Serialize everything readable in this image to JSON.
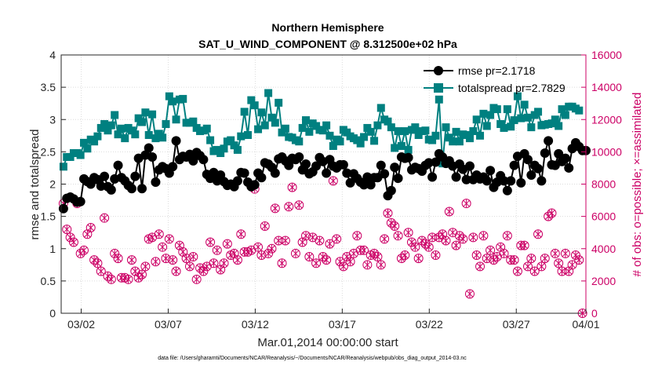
{
  "chart_data": {
    "type": "line",
    "title": "Northern Hemisphere",
    "subtitle": "SAT_U_WIND_COMPONENT @ 8.312500e+02 hPa",
    "xlabel": "Mar.01,2014 00:00:00 start",
    "ylabel_left": "rmse and totalspread",
    "ylabel_right": "# of obs: o=possible; ×=assimilated",
    "footnote": "data file: /Users/gharamti/Documents/NCAR/Reanalysis/~/Documents/NCAR/Reanalysis/webpub/obs_diag_output_2014-03.nc",
    "xlim": [
      0.85,
      31.0
    ],
    "ylim_left": [
      0,
      4
    ],
    "ylim_right": [
      0,
      16000
    ],
    "x_ticks": [
      {
        "value": 2,
        "label": "03/02"
      },
      {
        "value": 7,
        "label": "03/07"
      },
      {
        "value": 12,
        "label": "03/12"
      },
      {
        "value": 17,
        "label": "03/17"
      },
      {
        "value": 22,
        "label": "03/22"
      },
      {
        "value": 27,
        "label": "03/27"
      },
      {
        "value": 31,
        "label": "04/01"
      }
    ],
    "y_ticks_left": [
      "0",
      "0.5",
      "1",
      "1.5",
      "2",
      "2.5",
      "3",
      "3.5",
      "4"
    ],
    "y_ticks_right": [
      "0",
      "2000",
      "4000",
      "6000",
      "8000",
      "10000",
      "12000",
      "14000",
      "16000"
    ],
    "grid": true,
    "legend_position": "top-right",
    "colors": {
      "rmse": "#000000",
      "totalspread": "#008080",
      "obs": "#cc0066",
      "axis": "#262626",
      "grid": "#dcdcdc"
    },
    "series": [
      {
        "name": "rmse",
        "legend": "rmse pr=2.1718",
        "axis": "left",
        "values": [
          1.62,
          1.78,
          1.8,
          1.77,
          1.72,
          1.73,
          2.08,
          2.04,
          2.0,
          2.1,
          2.07,
          1.97,
          2.12,
          1.96,
          1.91,
          2.08,
          2.29,
          2.1,
          2.05,
          1.98,
          1.93,
          2.12,
          2.4,
          1.93,
          2.45,
          2.56,
          2.42,
          2.03,
          2.22,
          2.27,
          2.24,
          2.17,
          2.27,
          2.67,
          2.38,
          2.43,
          2.42,
          2.46,
          2.36,
          2.49,
          2.44,
          2.38,
          2.15,
          2.09,
          2.18,
          2.05,
          2.14,
          2.04,
          1.98,
          2.0,
          1.96,
          2.05,
          2.18,
          2.17,
          2.03,
          1.96,
          1.99,
          2.17,
          2.1,
          2.33,
          2.31,
          2.26,
          2.17,
          2.39,
          2.42,
          2.36,
          2.29,
          2.4,
          2.38,
          2.42,
          2.22,
          2.31,
          2.16,
          2.19,
          2.28,
          2.41,
          2.35,
          2.17,
          2.38,
          2.28,
          2.25,
          2.3,
          2.3,
          2.17,
          2.02,
          2.16,
          2.09,
          2.03,
          1.99,
          2.11,
          1.99,
          2.1,
          2.1,
          2.29,
          2.16,
          1.82,
          1.9,
          2.26,
          2.09,
          2.42,
          2.4,
          2.41,
          2.22,
          2.26,
          2.24,
          2.2,
          2.29,
          2.33,
          2.11,
          2.34,
          2.47,
          2.42,
          2.32,
          2.36,
          2.28,
          2.11,
          2.31,
          2.23,
          2.07,
          2.28,
          2.07,
          2.14,
          2.08,
          2.11,
          2.05,
          2.21,
          1.95,
          2.03,
          2.13,
          2.05,
          1.9,
          2.05,
          2.29,
          2.43,
          2.02,
          2.47,
          2.38,
          2.14,
          2.29,
          2.24,
          2.05,
          2.48,
          2.67,
          2.3,
          2.29,
          2.47,
          2.35,
          2.4,
          2.25,
          2.55,
          2.64,
          2.58,
          2.52,
          2.52
        ]
      },
      {
        "name": "totalspread",
        "legend": "totalspread pr=2.7829",
        "axis": "left",
        "values": [
          2.27,
          2.42,
          2.42,
          2.48,
          2.48,
          2.45,
          2.64,
          2.55,
          2.69,
          2.66,
          2.74,
          2.87,
          2.93,
          2.83,
          2.91,
          3.07,
          2.77,
          2.86,
          2.71,
          2.87,
          2.83,
          2.77,
          3.02,
          2.96,
          3.11,
          2.76,
          3.08,
          2.71,
          2.78,
          2.72,
          2.93,
          3.36,
          3.28,
          3.0,
          3.31,
          3.32,
          2.95,
          2.95,
          2.97,
          2.87,
          2.82,
          2.83,
          2.86,
          2.68,
          2.51,
          2.53,
          2.48,
          2.55,
          2.66,
          2.68,
          2.6,
          2.53,
          2.74,
          3.12,
          2.76,
          3.3,
          3.22,
          2.85,
          3.11,
          2.91,
          3.41,
          3.03,
          2.95,
          3.26,
          2.8,
          2.86,
          2.73,
          2.72,
          2.68,
          2.66,
          2.87,
          2.99,
          2.81,
          2.94,
          2.9,
          2.84,
          2.83,
          2.91,
          2.75,
          2.59,
          2.69,
          2.66,
          2.84,
          2.8,
          2.74,
          2.71,
          2.68,
          2.63,
          2.73,
          2.87,
          2.81,
          2.67,
          2.91,
          3.18,
          3.0,
          2.97,
          2.88,
          2.56,
          2.82,
          2.59,
          2.82,
          2.53,
          2.84,
          2.88,
          2.76,
          2.82,
          2.83,
          2.69,
          2.68,
          2.75,
          3.31,
          2.32,
          2.88,
          2.72,
          2.66,
          2.81,
          2.66,
          2.77,
          2.76,
          2.71,
          2.82,
          3.0,
          2.75,
          3.09,
          2.9,
          3.07,
          3.18,
          3.16,
          2.93,
          2.87,
          3.16,
          2.89,
          2.99,
          3.36,
          3.02,
          3.23,
          3.03,
          2.88,
          3.07,
          3.12,
          2.91,
          2.92,
          2.93,
          2.94,
          3.0,
          2.9,
          3.16,
          3.07,
          3.2,
          3.2,
          3.17,
          3.14
        ]
      },
      {
        "name": "obs_possible",
        "legend": "",
        "axis": "right",
        "values": [
          6800,
          5200,
          4700,
          4400,
          6800,
          3700,
          3900,
          4900,
          5300,
          3300,
          3100,
          2600,
          5900,
          2300,
          2100,
          3700,
          3400,
          2200,
          2200,
          2100,
          3300,
          2600,
          2200,
          2400,
          2900,
          4600,
          4700,
          3200,
          4900,
          4100,
          3400,
          4600,
          3300,
          2600,
          4200,
          3800,
          3400,
          2900,
          3500,
          2100,
          2800,
          2600,
          2900,
          4400,
          3100,
          3900,
          2700,
          3100,
          4300,
          3600,
          3700,
          3300,
          4900,
          3800,
          3800,
          3900,
          7700,
          4100,
          3600,
          5400,
          3700,
          4000,
          6500,
          4500,
          3100,
          4500,
          6600,
          7800,
          3700,
          6700,
          4400,
          4800,
          3500,
          4700,
          3100,
          4500,
          3500,
          3300,
          4300,
          8200,
          4600,
          3200,
          2900,
          3500,
          3200,
          3700,
          4800,
          3900,
          3900,
          3000,
          3600,
          3700,
          3500,
          3000,
          4600,
          6200,
          5600,
          5400,
          4800,
          3400,
          3600,
          5000,
          4400,
          4100,
          3400,
          4500,
          4300,
          4100,
          4700,
          3600,
          4700,
          4900,
          4500,
          6300,
          5000,
          4200,
          4800,
          4600,
          6800,
          1200,
          4700,
          3600,
          2900,
          4800,
          3400,
          3900,
          3300,
          3500,
          4100,
          3700,
          4800,
          3300,
          3300,
          2600,
          4200,
          4200,
          2900,
          3400,
          2600,
          4900,
          2900,
          3400,
          6000,
          6200,
          3700,
          3100,
          2600,
          3700,
          2600,
          3000,
          3600,
          3300,
          0
        ]
      },
      {
        "name": "obs_assimilated",
        "legend": "",
        "axis": "right",
        "values": [
          6800,
          5200,
          4700,
          4400,
          6800,
          3700,
          3900,
          4900,
          5300,
          3300,
          3100,
          2600,
          5900,
          2300,
          2100,
          3700,
          3400,
          2200,
          2200,
          2100,
          3300,
          2600,
          2200,
          2400,
          2900,
          4600,
          4700,
          3200,
          4900,
          4100,
          3400,
          4600,
          3300,
          2600,
          4200,
          3800,
          3400,
          2900,
          3500,
          2100,
          2800,
          2600,
          2900,
          4400,
          3100,
          3900,
          2700,
          3100,
          4300,
          3600,
          3700,
          3300,
          4900,
          3800,
          3800,
          3900,
          7700,
          4100,
          3600,
          5400,
          3700,
          4000,
          6500,
          4500,
          3100,
          4500,
          6600,
          7800,
          3700,
          6700,
          4400,
          4800,
          3500,
          4700,
          3100,
          4500,
          3500,
          3300,
          4300,
          8200,
          4600,
          3200,
          2900,
          3500,
          3200,
          3700,
          4800,
          3900,
          3900,
          3000,
          3600,
          3700,
          3500,
          3000,
          4600,
          6200,
          5600,
          5400,
          4800,
          3400,
          3600,
          5000,
          4400,
          4100,
          3400,
          4500,
          4300,
          4100,
          4700,
          3600,
          4700,
          4900,
          4500,
          6300,
          5000,
          4200,
          4800,
          4600,
          6800,
          1200,
          4700,
          3600,
          2900,
          4800,
          3400,
          3900,
          3300,
          3500,
          4100,
          3700,
          4800,
          3300,
          3300,
          2600,
          4200,
          4200,
          2900,
          3400,
          2600,
          4900,
          2900,
          3400,
          6000,
          6200,
          3700,
          3100,
          2600,
          3700,
          2600,
          3000,
          3600,
          3300,
          0
        ]
      }
    ]
  }
}
